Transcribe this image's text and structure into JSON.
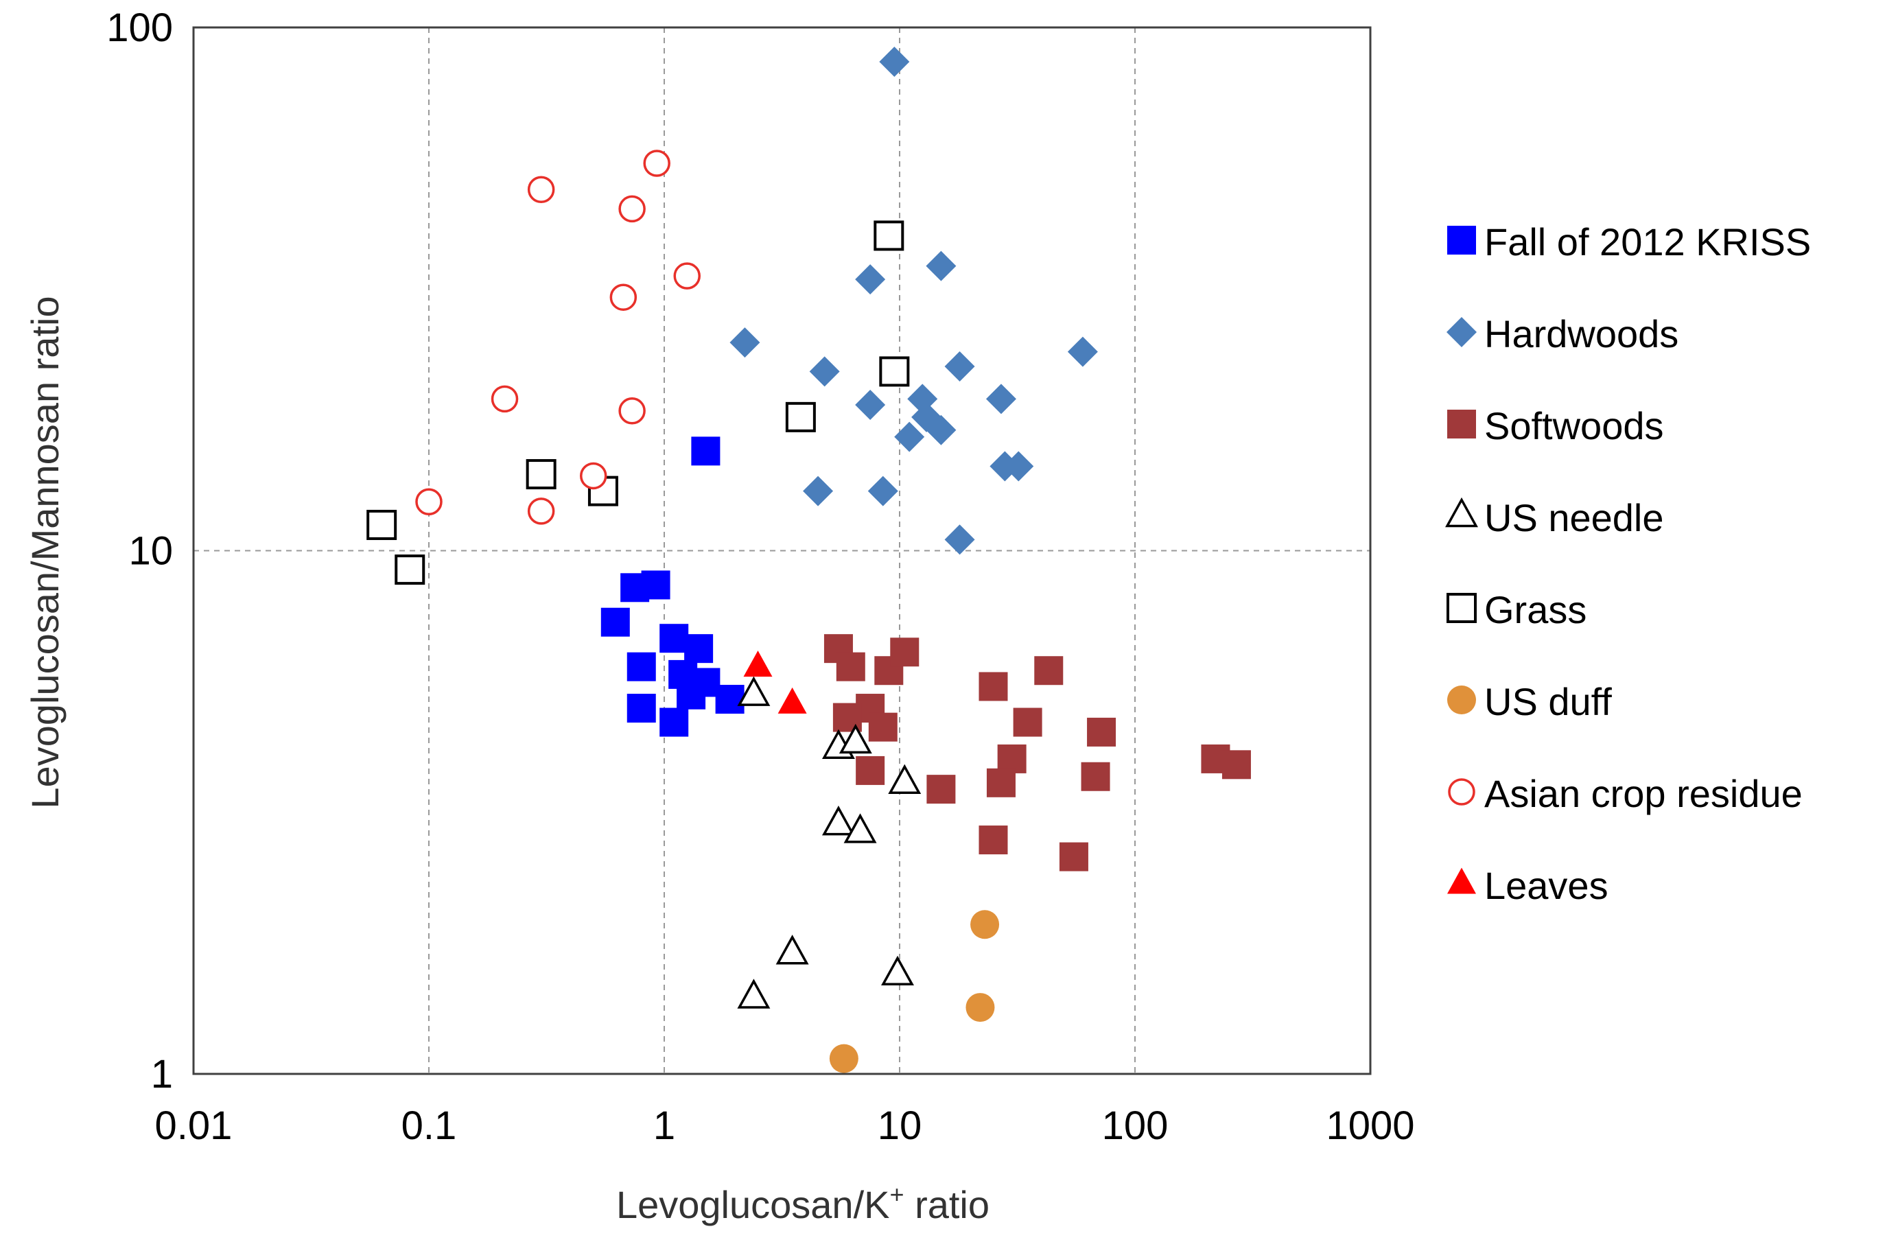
{
  "chart_data": {
    "type": "scatter",
    "title": "",
    "xlabel": "Levoglucosan/K",
    "xlabel_superscript": "+",
    "xlabel_suffix": " ratio",
    "ylabel": "Levoglucosan/Mannosan ratio",
    "x_scale": "log",
    "y_scale": "log",
    "xlim": [
      0.01,
      1000
    ],
    "ylim": [
      1,
      100
    ],
    "x_ticks": [
      "0.01",
      "0.1",
      "1",
      "10",
      "100",
      "1000"
    ],
    "y_ticks": [
      "1",
      "10",
      "100"
    ],
    "grid": true,
    "legend_position": "right",
    "series": [
      {
        "name": "Fall of 2012 KRISS",
        "marker": "square-filled",
        "color": "#0000FF",
        "points": [
          [
            0.75,
            8.5
          ],
          [
            0.92,
            8.6
          ],
          [
            0.62,
            7.3
          ],
          [
            1.1,
            6.8
          ],
          [
            1.4,
            6.5
          ],
          [
            0.8,
            6.0
          ],
          [
            1.2,
            5.8
          ],
          [
            1.5,
            5.6
          ],
          [
            1.3,
            5.3
          ],
          [
            1.9,
            5.2
          ],
          [
            0.8,
            5.0
          ],
          [
            1.1,
            4.7
          ],
          [
            1.5,
            15.5
          ]
        ]
      },
      {
        "name": "Hardwoods",
        "marker": "diamond-filled",
        "color": "#4A7EBB",
        "points": [
          [
            9.5,
            86
          ],
          [
            15,
            35
          ],
          [
            7.5,
            33
          ],
          [
            2.2,
            25
          ],
          [
            4.8,
            22
          ],
          [
            18,
            22.5
          ],
          [
            60,
            24
          ],
          [
            27,
            19.5
          ],
          [
            7.5,
            19
          ],
          [
            12.5,
            19.5
          ],
          [
            13,
            18
          ],
          [
            15,
            17
          ],
          [
            11,
            16.5
          ],
          [
            4.5,
            13
          ],
          [
            8.5,
            13
          ],
          [
            28,
            14.5
          ],
          [
            32,
            14.5
          ],
          [
            18,
            10.5
          ]
        ]
      },
      {
        "name": "Softwoods",
        "marker": "square-filled",
        "color": "#A0393A",
        "points": [
          [
            5.5,
            6.5
          ],
          [
            6.2,
            6.0
          ],
          [
            9.0,
            5.9
          ],
          [
            10.5,
            6.4
          ],
          [
            43,
            5.9
          ],
          [
            25,
            5.5
          ],
          [
            35,
            4.7
          ],
          [
            72,
            4.5
          ],
          [
            7.5,
            5.0
          ],
          [
            6.0,
            4.8
          ],
          [
            8.5,
            4.6
          ],
          [
            7.5,
            3.8
          ],
          [
            30,
            4.0
          ],
          [
            27,
            3.6
          ],
          [
            15,
            3.5
          ],
          [
            68,
            3.7
          ],
          [
            220,
            4.0
          ],
          [
            270,
            3.9
          ],
          [
            25,
            2.8
          ],
          [
            55,
            2.6
          ]
        ]
      },
      {
        "name": "US needle",
        "marker": "triangle-open",
        "color": "#000000",
        "points": [
          [
            2.4,
            5.3
          ],
          [
            5.5,
            4.2
          ],
          [
            6.5,
            4.3
          ],
          [
            10.5,
            3.6
          ],
          [
            5.5,
            3.0
          ],
          [
            6.8,
            2.9
          ],
          [
            3.5,
            1.7
          ],
          [
            9.8,
            1.55
          ],
          [
            2.4,
            1.4
          ]
        ]
      },
      {
        "name": "Grass",
        "marker": "square-open",
        "color": "#000000",
        "points": [
          [
            9.0,
            40
          ],
          [
            9.5,
            22
          ],
          [
            3.8,
            18
          ],
          [
            0.3,
            14
          ],
          [
            0.55,
            13
          ],
          [
            0.063,
            11.2
          ],
          [
            0.083,
            9.2
          ]
        ]
      },
      {
        "name": "US duff",
        "marker": "circle-filled",
        "color": "#E0913A",
        "points": [
          [
            23,
            1.93
          ],
          [
            22,
            1.34
          ],
          [
            5.8,
            1.07
          ]
        ]
      },
      {
        "name": "Asian crop residue",
        "marker": "circle-open",
        "color": "#E8302A",
        "points": [
          [
            0.93,
            55
          ],
          [
            0.3,
            49
          ],
          [
            0.73,
            45
          ],
          [
            1.25,
            33.5
          ],
          [
            0.67,
            30.5
          ],
          [
            0.21,
            19.5
          ],
          [
            0.73,
            18.5
          ],
          [
            0.1,
            12.4
          ],
          [
            0.5,
            13.9
          ],
          [
            0.3,
            11.9
          ]
        ]
      },
      {
        "name": "Leaves",
        "marker": "triangle-filled",
        "color": "#FF0000",
        "points": [
          [
            2.5,
            6.0
          ],
          [
            3.5,
            5.1
          ]
        ]
      }
    ]
  }
}
